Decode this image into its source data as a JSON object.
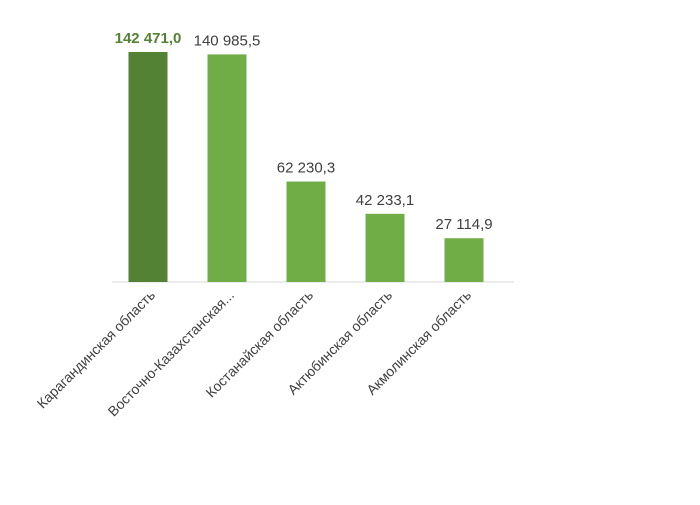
{
  "chart_data": {
    "type": "bar",
    "title": "",
    "xlabel": "",
    "ylabel": "",
    "categories": [
      "Карагандинская область",
      "Восточно-Казахстанская...",
      "Костанайская область",
      "Актюбинская область",
      "Акмолинская область"
    ],
    "values": [
      142471.0,
      140985.5,
      62230.3,
      42233.1,
      27114.9
    ],
    "value_labels": [
      "142 471,0",
      "140 985,5",
      "62 230,3",
      "42 233,1",
      "27 114,9"
    ],
    "highlight_index": 0,
    "ylim": [
      0,
      142471.0
    ],
    "grid": false,
    "legend": "none",
    "colors": {
      "bar": "#70ad47",
      "bar_highlight": "#548235",
      "highlight_label": "#548235",
      "text": "#404040",
      "axis": "#d9d9d9"
    }
  }
}
